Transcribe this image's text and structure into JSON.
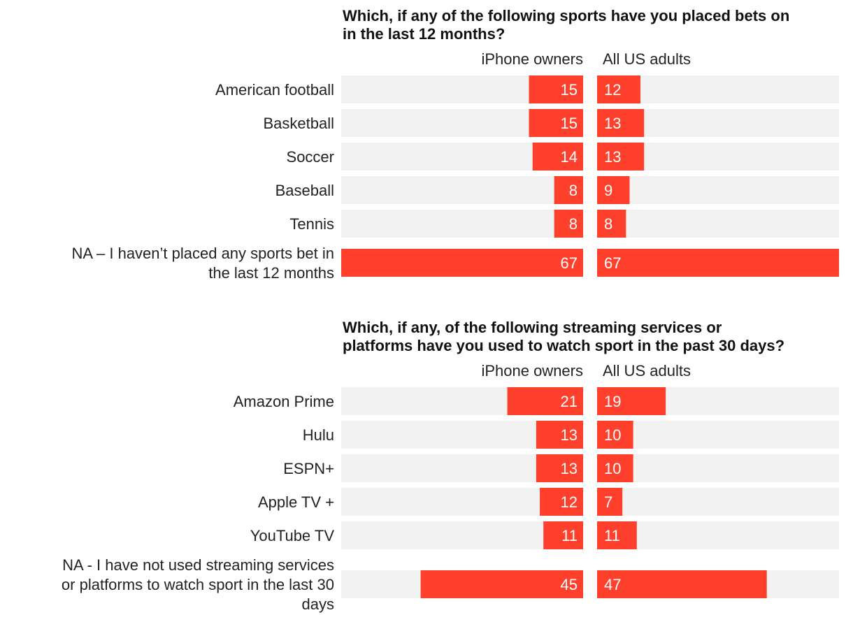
{
  "colors": {
    "bar": "#ff402d",
    "track": "#f2f2f2",
    "value_text": "#ffffff"
  },
  "chart_data": [
    {
      "type": "bar",
      "title": "Which, if any of the following sports have you placed bets on in the last 12 months?",
      "title_lines": [
        "Which, if any of the following sports have you placed bets on",
        "in the last 12 months?"
      ],
      "categories": [
        "American football",
        "Basketball",
        "Soccer",
        "Baseball",
        "Tennis",
        "NA – I haven’t placed any sports bet in the last 12 months"
      ],
      "category_lines": [
        [
          "American football"
        ],
        [
          "Basketball"
        ],
        [
          "Soccer"
        ],
        [
          "Baseball"
        ],
        [
          "Tennis"
        ],
        [
          "NA – I haven’t placed any sports bet in",
          "the last 12 months"
        ]
      ],
      "series": [
        {
          "name": "iPhone owners",
          "values": [
            15,
            15,
            14,
            8,
            8,
            67
          ]
        },
        {
          "name": "All US adults",
          "values": [
            12,
            13,
            13,
            9,
            8,
            67
          ]
        }
      ],
      "ylim": [
        0,
        67
      ]
    },
    {
      "type": "bar",
      "title": "Which, if any, of the following streaming services or platforms have you used to watch sport in the past 30 days?",
      "title_lines": [
        "Which, if any, of the following streaming services or",
        "platforms have you used to watch sport in the past 30 days?"
      ],
      "categories": [
        "Amazon Prime",
        "Hulu",
        "ESPN+",
        "Apple TV +",
        "YouTube TV",
        "NA - I have not used streaming services or platforms to watch sport in the last 30 days"
      ],
      "category_lines": [
        [
          "Amazon Prime"
        ],
        [
          "Hulu"
        ],
        [
          "ESPN+"
        ],
        [
          "Apple TV +"
        ],
        [
          "YouTube TV"
        ],
        [
          "NA - I have not used streaming services",
          "or platforms to watch sport in the last 30",
          "days"
        ]
      ],
      "series": [
        {
          "name": "iPhone owners",
          "values": [
            21,
            13,
            13,
            12,
            11,
            45
          ]
        },
        {
          "name": "All US adults",
          "values": [
            19,
            10,
            10,
            7,
            11,
            47
          ]
        }
      ],
      "ylim": [
        0,
        67
      ]
    }
  ]
}
